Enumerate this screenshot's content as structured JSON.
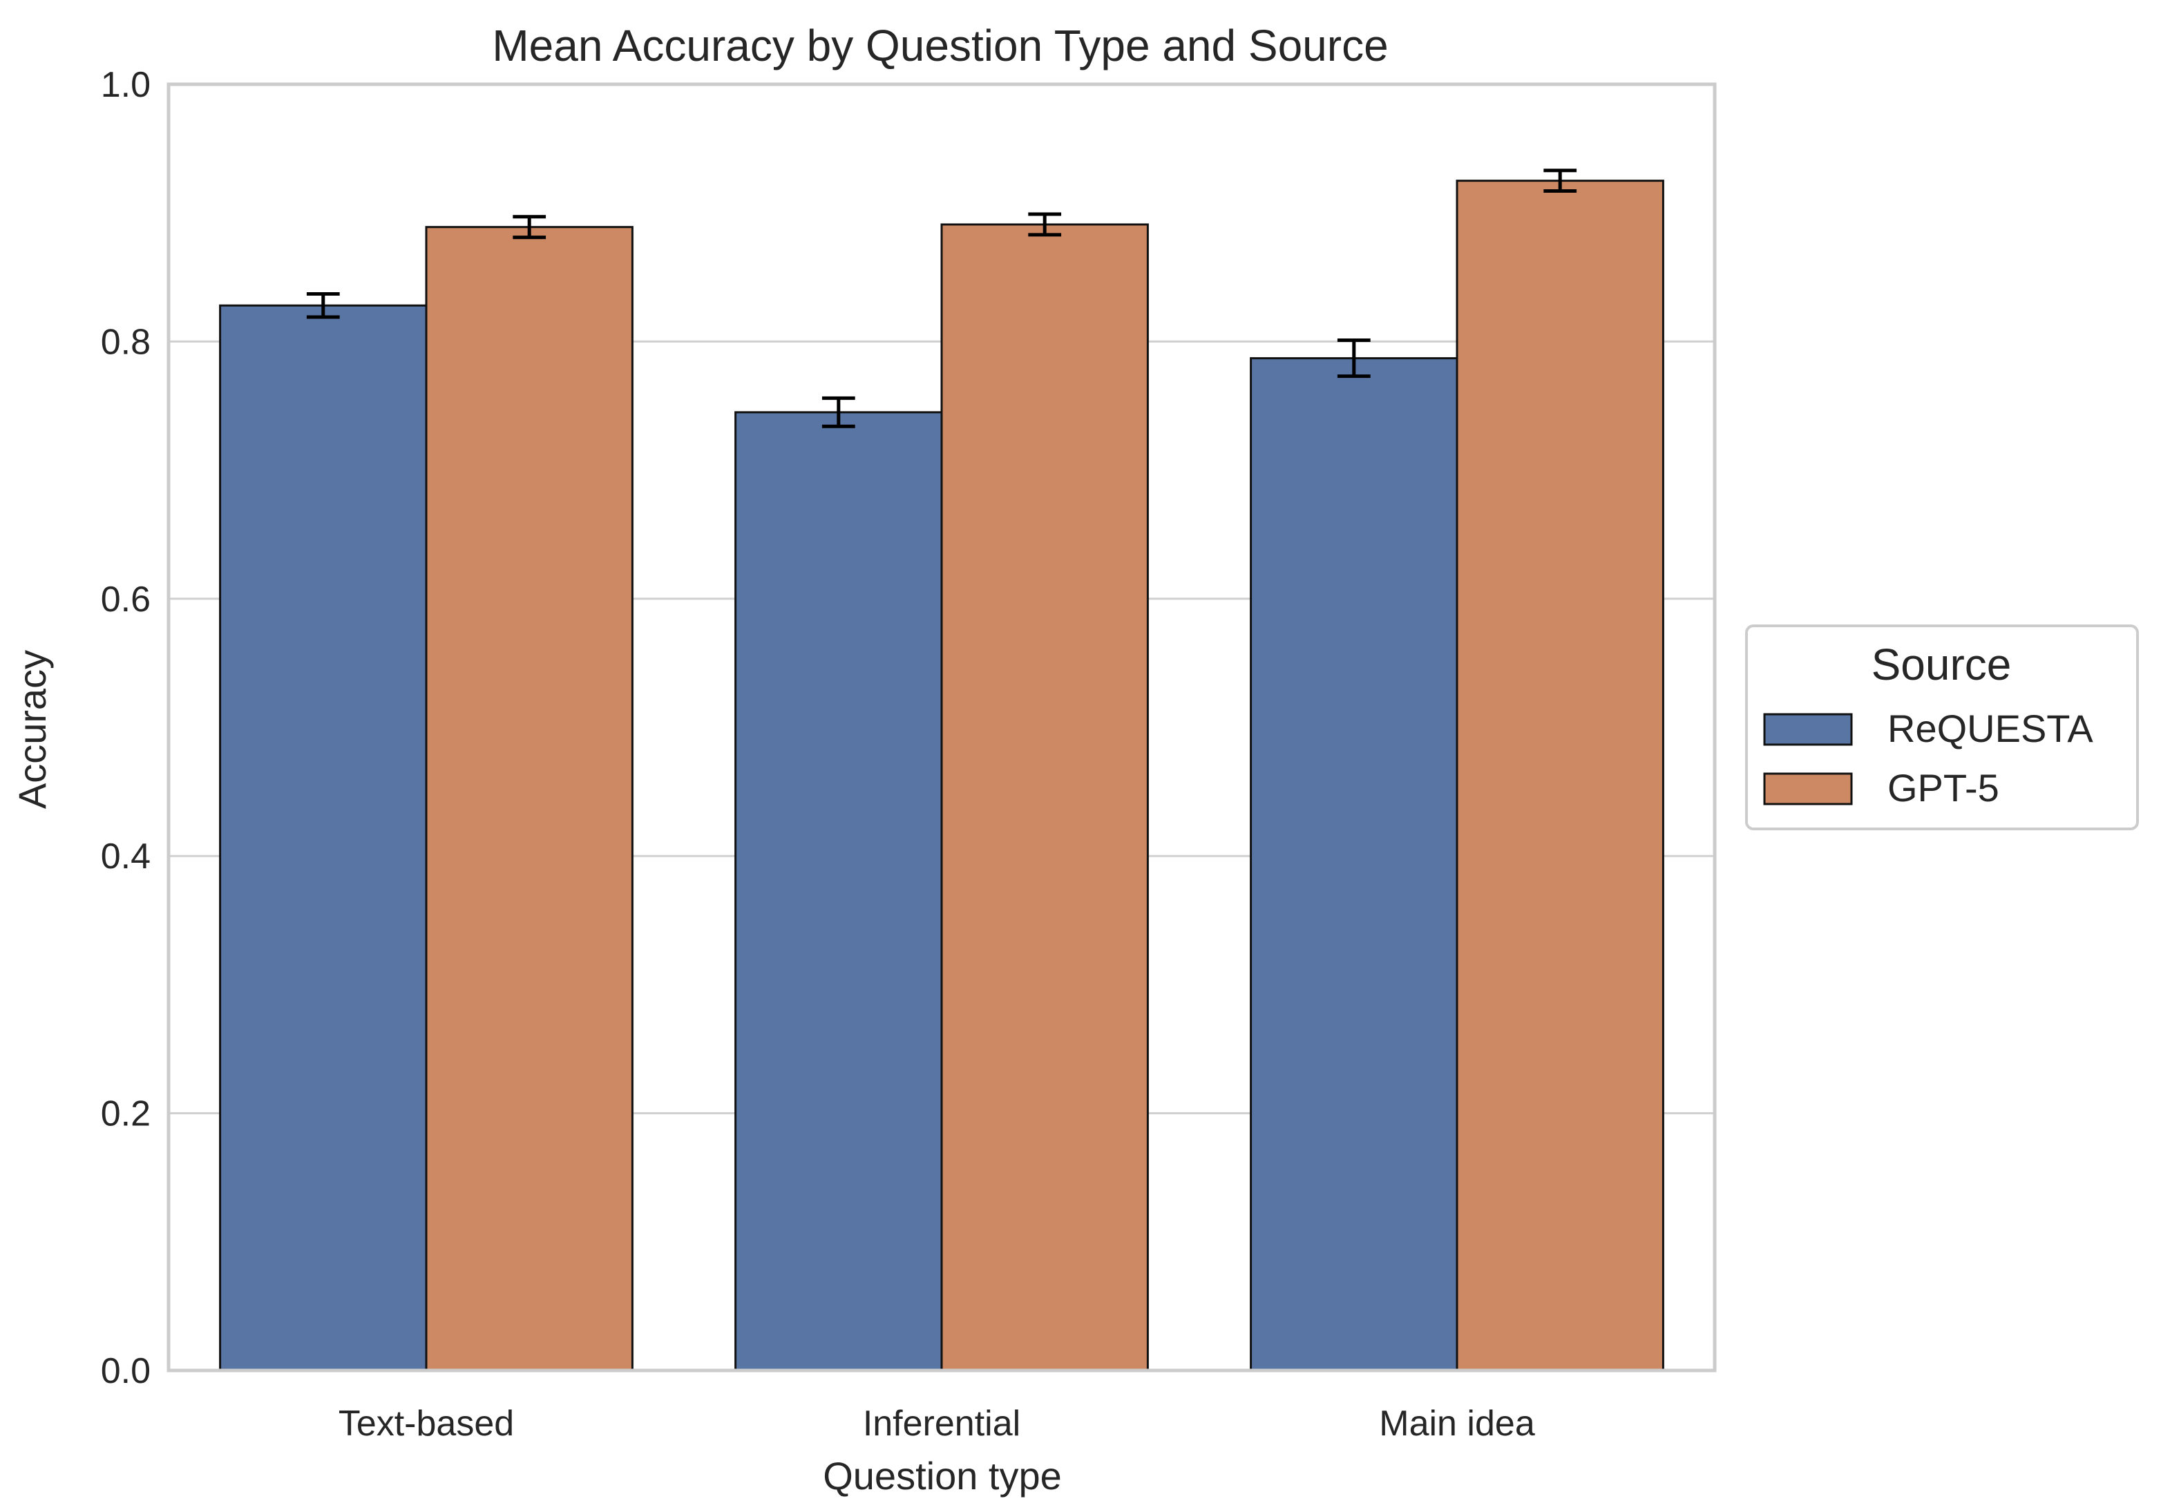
{
  "chart_data": {
    "type": "bar",
    "title": "Mean Accuracy by Question Type and Source",
    "xlabel": "Question type",
    "ylabel": "Accuracy",
    "ylim": [
      0.0,
      1.0
    ],
    "yticks": [
      "0.0",
      "0.2",
      "0.4",
      "0.6",
      "0.8",
      "1.0"
    ],
    "grid": true,
    "categories": [
      "Text-based",
      "Inferential",
      "Main idea"
    ],
    "legend": {
      "title": "Source",
      "placement": "center-right, outside"
    },
    "series": [
      {
        "name": "ReQUESTA",
        "color": "#5975a4",
        "values": [
          0.828,
          0.745,
          0.787
        ],
        "error": [
          0.009,
          0.011,
          0.014
        ]
      },
      {
        "name": "GPT-5",
        "color": "#cc8963",
        "values": [
          0.889,
          0.891,
          0.925
        ],
        "error": [
          0.008,
          0.008,
          0.008
        ]
      }
    ]
  }
}
